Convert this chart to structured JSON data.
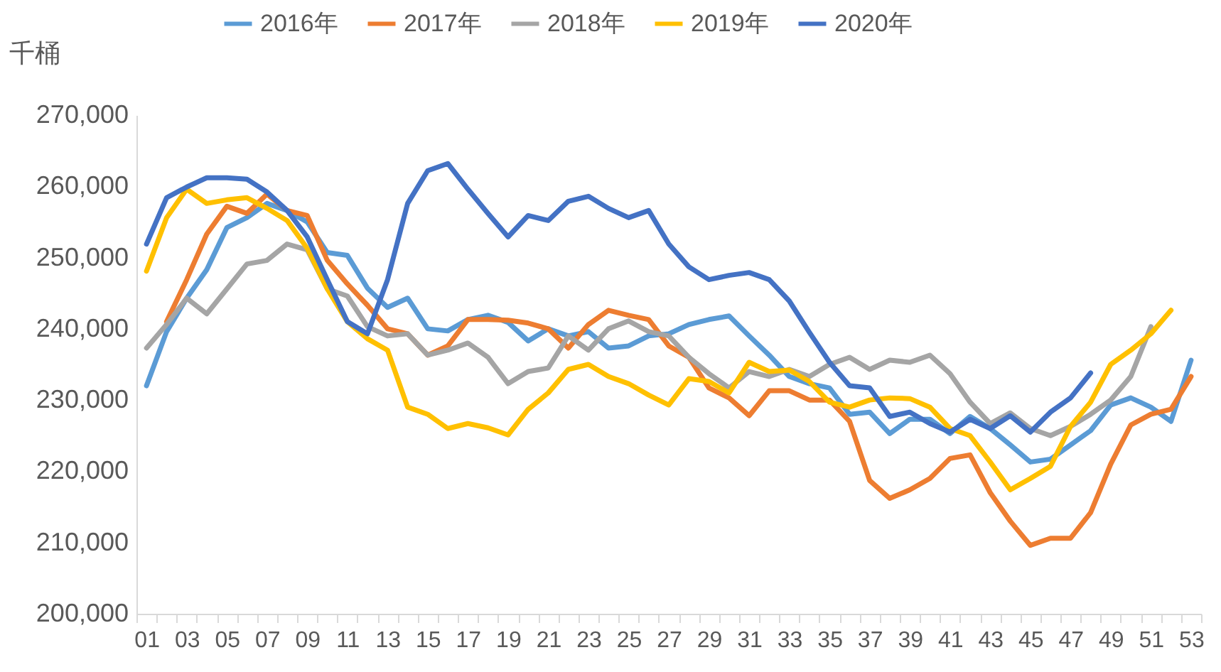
{
  "chart_data": {
    "type": "line",
    "ylabel": "千桶",
    "categories": [
      "01",
      null,
      "03",
      null,
      "05",
      null,
      "07",
      null,
      "09",
      null,
      "11",
      null,
      "13",
      null,
      "15",
      null,
      "17",
      null,
      "19",
      null,
      "21",
      null,
      "23",
      null,
      "25",
      null,
      "27",
      null,
      "29",
      null,
      "31",
      null,
      "33",
      null,
      "35",
      null,
      "37",
      null,
      "39",
      null,
      "41",
      null,
      "43",
      null,
      "45",
      null,
      "47",
      null,
      "49",
      null,
      "51",
      null,
      "53"
    ],
    "ylim": [
      200000,
      270000
    ],
    "yticks": [
      {
        "value": 200000,
        "label": "200,000"
      },
      {
        "value": 210000,
        "label": "210,000"
      },
      {
        "value": 220000,
        "label": "220,000"
      },
      {
        "value": 230000,
        "label": "230,000"
      },
      {
        "value": 240000,
        "label": "240,000"
      },
      {
        "value": 250000,
        "label": "250,000"
      },
      {
        "value": 260000,
        "label": "260,000"
      },
      {
        "value": 270000,
        "label": "270,000"
      }
    ],
    "grid": false,
    "legend": "top",
    "line_style": "solid",
    "marker": "none",
    "series": [
      {
        "name": "2016年",
        "color": "#5b9bd5",
        "values": [
          232000,
          239600,
          244300,
          248300,
          254200,
          255600,
          257600,
          256600,
          255000,
          250700,
          250300,
          245700,
          243000,
          244300,
          240000,
          239700,
          241300,
          241900,
          240900,
          238300,
          240000,
          239000,
          239600,
          237300,
          237600,
          239000,
          239300,
          240600,
          241300,
          241800,
          239000,
          236300,
          233300,
          232300,
          231700,
          228000,
          228300,
          225300,
          227300,
          227300,
          225300,
          227700,
          226000,
          223700,
          221300,
          221700,
          223700,
          225700,
          229300,
          230300,
          229000,
          227000,
          235600
        ]
      },
      {
        "name": "2017年",
        "color": "#ed7d31",
        "values": [
          null,
          241000,
          246900,
          253300,
          257200,
          256200,
          258900,
          256600,
          255900,
          249600,
          246300,
          243300,
          240000,
          239300,
          236300,
          237600,
          241300,
          241300,
          241200,
          240800,
          240000,
          237300,
          240600,
          242600,
          241900,
          241300,
          237600,
          236000,
          231700,
          230300,
          227800,
          231300,
          231300,
          230000,
          230000,
          227000,
          218700,
          216200,
          217400,
          219000,
          221800,
          222300,
          217000,
          213000,
          209600,
          210600,
          210600,
          214200,
          221000,
          226500,
          228000,
          228700,
          233300
        ]
      },
      {
        "name": "2018年",
        "color": "#a5a5a5",
        "values": [
          237300,
          240600,
          244300,
          242100,
          245600,
          249100,
          249600,
          251900,
          251100,
          245600,
          244600,
          240300,
          239000,
          239300,
          236300,
          237000,
          238000,
          236000,
          232300,
          234000,
          234500,
          239000,
          237000,
          240000,
          241100,
          239600,
          239000,
          236000,
          233700,
          231700,
          234000,
          233300,
          234300,
          233300,
          235000,
          236000,
          234300,
          235600,
          235300,
          236300,
          233700,
          229700,
          226700,
          228200,
          226000,
          225000,
          226300,
          228000,
          230000,
          233300,
          240300,
          null,
          null
        ]
      },
      {
        "name": "2019年",
        "color": "#ffc000",
        "values": [
          248100,
          255600,
          259600,
          257600,
          258100,
          258400,
          256900,
          255200,
          251300,
          245600,
          241000,
          238600,
          237000,
          229000,
          228000,
          226000,
          226700,
          226100,
          225100,
          228700,
          231000,
          234300,
          235000,
          233300,
          232300,
          230700,
          229300,
          233000,
          232600,
          231000,
          235300,
          234000,
          234200,
          232600,
          229700,
          229000,
          230000,
          230300,
          230200,
          229000,
          226000,
          225000,
          221300,
          217400,
          219000,
          220700,
          226300,
          229700,
          235000,
          237000,
          239300,
          242600,
          null
        ]
      },
      {
        "name": "2020年",
        "color": "#4472c4",
        "values": [
          251900,
          258400,
          259900,
          261200,
          261200,
          261000,
          259200,
          256600,
          252900,
          246900,
          241000,
          239300,
          246900,
          257600,
          262200,
          263200,
          259600,
          256200,
          252900,
          255900,
          255200,
          257900,
          258600,
          256900,
          255600,
          256600,
          251900,
          248700,
          246900,
          247500,
          247900,
          246900,
          243900,
          239500,
          235300,
          232000,
          231700,
          227700,
          228300,
          226700,
          225500,
          227300,
          226000,
          227800,
          225500,
          228300,
          230300,
          233800,
          null,
          null,
          null,
          null,
          null
        ]
      }
    ]
  }
}
